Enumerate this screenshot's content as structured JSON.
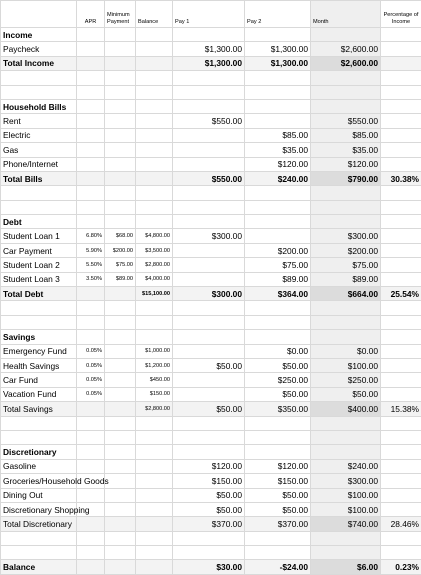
{
  "headers": {
    "category": "",
    "apr": "APR",
    "min_payment": "Minimum Payment",
    "balance": "Balance",
    "pay1": "Pay 1",
    "pay2": "Pay 2",
    "month": "Month",
    "pct": "Percentage of Income"
  },
  "rows": [
    {
      "type": "section",
      "label": "Income"
    },
    {
      "type": "item",
      "label": "Paycheck",
      "pay1": "$1,300.00",
      "pay2": "$1,300.00",
      "month": "$2,600.00"
    },
    {
      "type": "total",
      "label": "Total Income",
      "bold": true,
      "pay1": "$1,300.00",
      "pay2": "$1,300.00",
      "month": "$2,600.00"
    },
    {
      "type": "blank"
    },
    {
      "type": "blank"
    },
    {
      "type": "section",
      "label": "Household Bills"
    },
    {
      "type": "item",
      "label": "Rent",
      "pay1": "$550.00",
      "month": "$550.00"
    },
    {
      "type": "item",
      "label": "Electric",
      "pay2": "$85.00",
      "month": "$85.00"
    },
    {
      "type": "item",
      "label": "Gas",
      "pay2": "$35.00",
      "month": "$35.00"
    },
    {
      "type": "item",
      "label": "Phone/Internet",
      "pay2": "$120.00",
      "month": "$120.00"
    },
    {
      "type": "total",
      "label": "Total Bills",
      "bold": true,
      "pay1": "$550.00",
      "pay2": "$240.00",
      "month": "$790.00",
      "pct": "30.38%"
    },
    {
      "type": "blank"
    },
    {
      "type": "blank"
    },
    {
      "type": "section",
      "label": "Debt"
    },
    {
      "type": "item",
      "label": "Student Loan 1",
      "apr": "6.80%",
      "min": "$68.00",
      "balance": "$4,800.00",
      "pay1": "$300.00",
      "month": "$300.00"
    },
    {
      "type": "item",
      "label": "Car Payment",
      "apr": "5.90%",
      "min": "$200.00",
      "balance": "$3,500.00",
      "pay2": "$200.00",
      "month": "$200.00"
    },
    {
      "type": "item",
      "label": "Student Loan 2",
      "apr": "5.50%",
      "min": "$75.00",
      "balance": "$2,800.00",
      "pay2": "$75.00",
      "month": "$75.00"
    },
    {
      "type": "item",
      "label": "Student Loan 3",
      "apr": "3.50%",
      "min": "$89.00",
      "balance": "$4,000.00",
      "pay2": "$89.00",
      "month": "$89.00"
    },
    {
      "type": "total",
      "label": "Total Debt",
      "bold": true,
      "balance": "$15,100.00",
      "pay1": "$300.00",
      "pay2": "$364.00",
      "month": "$664.00",
      "pct": "25.54%"
    },
    {
      "type": "blank"
    },
    {
      "type": "blank"
    },
    {
      "type": "section",
      "label": "Savings"
    },
    {
      "type": "item",
      "label": "Emergency Fund",
      "apr": "0.05%",
      "balance": "$1,000.00",
      "pay2": "$0.00",
      "month": "$0.00"
    },
    {
      "type": "item",
      "label": "Health Savings",
      "apr": "0.05%",
      "balance": "$1,200.00",
      "pay1": "$50.00",
      "pay2": "$50.00",
      "month": "$100.00"
    },
    {
      "type": "item",
      "label": "Car Fund",
      "apr": "0.05%",
      "balance": "$450.00",
      "pay2": "$250.00",
      "month": "$250.00"
    },
    {
      "type": "item",
      "label": "Vacation Fund",
      "apr": "0.05%",
      "balance": "$150.00",
      "pay2": "$50.00",
      "month": "$50.00"
    },
    {
      "type": "total",
      "label": "Total Savings",
      "bold": false,
      "balance": "$2,800.00",
      "pay1": "$50.00",
      "pay2": "$350.00",
      "month": "$400.00",
      "pct": "15.38%"
    },
    {
      "type": "blank"
    },
    {
      "type": "blank"
    },
    {
      "type": "section",
      "label": "Discretionary"
    },
    {
      "type": "item",
      "label": "Gasoline",
      "pay1": "$120.00",
      "pay2": "$120.00",
      "month": "$240.00"
    },
    {
      "type": "item",
      "label": "Groceries/Household Goods",
      "pay1": "$150.00",
      "pay2": "$150.00",
      "month": "$300.00"
    },
    {
      "type": "item",
      "label": "Dining Out",
      "pay1": "$50.00",
      "pay2": "$50.00",
      "month": "$100.00"
    },
    {
      "type": "item",
      "label": "Discretionary Shopping",
      "pay1": "$50.00",
      "pay2": "$50.00",
      "month": "$100.00"
    },
    {
      "type": "total",
      "label": "Total Discretionary",
      "bold": false,
      "pay1": "$370.00",
      "pay2": "$370.00",
      "month": "$740.00",
      "pct": "28.46%"
    },
    {
      "type": "blank"
    },
    {
      "type": "blank"
    },
    {
      "type": "total",
      "label": "Balance",
      "bold": true,
      "pay1": "$30.00",
      "pay2": "-$24.00",
      "month": "$6.00",
      "pct": "0.23%"
    }
  ]
}
